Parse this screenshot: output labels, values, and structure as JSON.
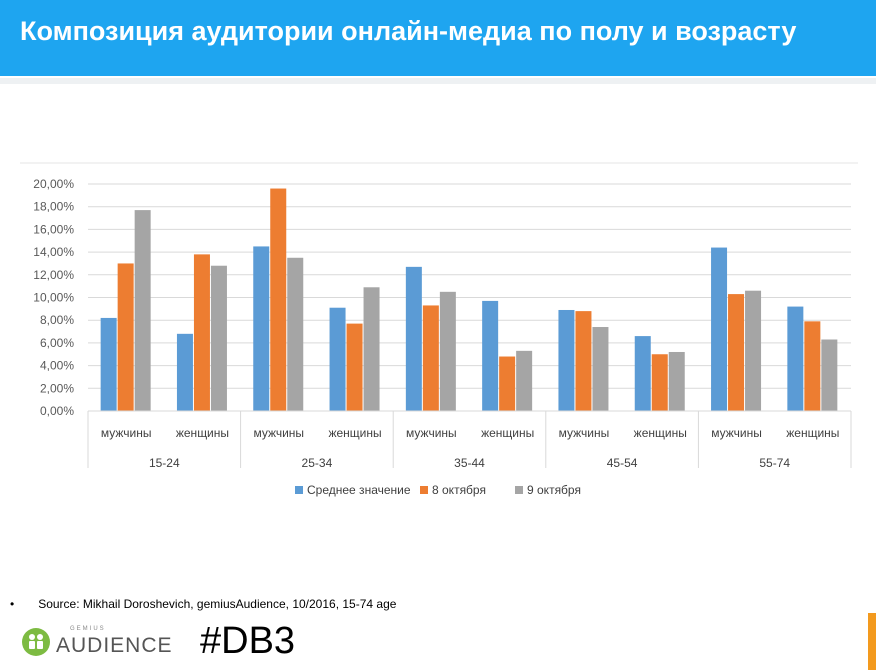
{
  "title": "Композиция аудитории онлайн-медиа по полу и возрасту",
  "source": "Source: Mikhail Doroshevich, gemiusAudience,  10/2016, 15-74 age",
  "logo": {
    "small": "GEMIUS",
    "main": "AUDIENCE"
  },
  "hashtag": "#DB3",
  "chart_data": {
    "type": "bar",
    "groups": [
      "15-24",
      "25-34",
      "35-44",
      "45-54",
      "55-74"
    ],
    "categories": [
      "мужчины",
      "женщины",
      "мужчины",
      "женщины",
      "мужчины",
      "женщины",
      "мужчины",
      "женщины",
      "мужчины",
      "женщины"
    ],
    "series": [
      {
        "name": "Среднее значение",
        "color": "#5b9bd5",
        "values": [
          8.2,
          6.8,
          14.5,
          9.1,
          12.7,
          9.7,
          8.9,
          6.6,
          14.4,
          9.2
        ]
      },
      {
        "name": "8 октября",
        "color": "#ed7d31",
        "values": [
          13.0,
          13.8,
          19.6,
          7.7,
          9.3,
          4.8,
          8.8,
          5.0,
          10.3,
          7.9
        ]
      },
      {
        "name": "9 октября",
        "color": "#a5a5a5",
        "values": [
          17.7,
          12.8,
          13.5,
          10.9,
          10.5,
          5.3,
          7.4,
          5.2,
          10.6,
          6.3
        ]
      }
    ],
    "yticks": [
      "0,00%",
      "2,00%",
      "4,00%",
      "6,00%",
      "8,00%",
      "10,00%",
      "12,00%",
      "14,00%",
      "16,00%",
      "18,00%",
      "20,00%"
    ],
    "ylim": [
      0,
      20
    ],
    "grid": true,
    "legend": "bottom"
  }
}
